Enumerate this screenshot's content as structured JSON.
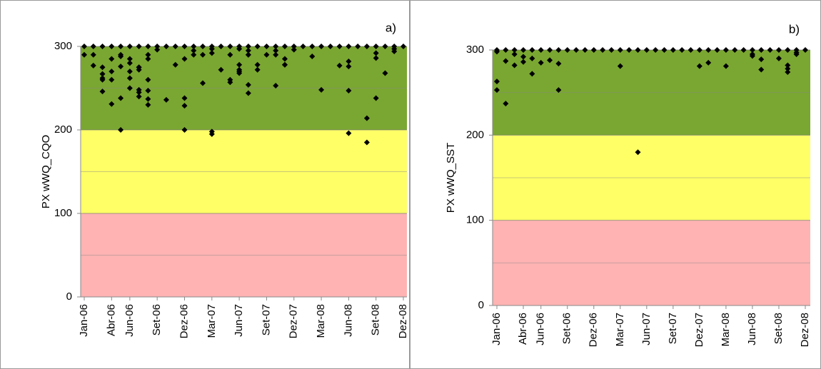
{
  "chart_data": [
    {
      "type": "scatter",
      "panel_label": "a)",
      "y_label": "PX wWQ_CQO",
      "x": [
        "2006-01",
        "2006-01",
        "2006-02",
        "2006-02",
        "2006-02",
        "2006-03",
        "2006-03",
        "2006-03",
        "2006-03",
        "2006-03",
        "2006-03",
        "2006-04",
        "2006-04",
        "2006-04",
        "2006-04",
        "2006-04",
        "2006-05",
        "2006-05",
        "2006-05",
        "2006-05",
        "2006-05",
        "2006-05",
        "2006-06",
        "2006-06",
        "2006-06",
        "2006-06",
        "2006-06",
        "2006-06",
        "2006-07",
        "2006-07",
        "2006-07",
        "2006-07",
        "2006-07",
        "2006-07",
        "2006-07",
        "2006-08",
        "2006-08",
        "2006-08",
        "2006-08",
        "2006-08",
        "2006-08",
        "2006-08",
        "2006-09",
        "2006-09",
        "2006-10",
        "2006-10",
        "2006-11",
        "2006-11",
        "2006-12",
        "2006-12",
        "2006-12",
        "2006-12",
        "2006-12",
        "2007-01",
        "2007-01",
        "2007-01",
        "2007-02",
        "2007-02",
        "2007-02",
        "2007-03",
        "2007-03",
        "2007-03",
        "2007-03",
        "2007-03",
        "2007-04",
        "2007-04",
        "2007-05",
        "2007-05",
        "2007-05",
        "2007-05",
        "2007-06",
        "2007-06",
        "2007-06",
        "2007-06",
        "2007-06",
        "2007-06",
        "2007-07",
        "2007-07",
        "2007-07",
        "2007-07",
        "2007-07",
        "2007-07",
        "2007-08",
        "2007-08",
        "2007-08",
        "2007-09",
        "2007-09",
        "2007-10",
        "2007-10",
        "2007-10",
        "2007-10",
        "2007-11",
        "2007-11",
        "2007-11",
        "2007-11",
        "2007-12",
        "2007-12",
        "2008-01",
        "2008-02",
        "2008-02",
        "2008-03",
        "2008-03",
        "2008-04",
        "2008-05",
        "2008-05",
        "2008-06",
        "2008-06",
        "2008-06",
        "2008-06",
        "2008-06",
        "2008-07",
        "2008-08",
        "2008-08",
        "2008-08",
        "2008-09",
        "2008-09",
        "2008-09",
        "2008-09",
        "2008-10",
        "2008-10",
        "2008-11",
        "2008-11",
        "2008-11",
        "2008-12"
      ],
      "values": [
        300,
        290,
        300,
        290,
        277,
        300,
        267,
        260,
        246,
        275,
        262,
        300,
        231,
        270,
        285,
        260,
        300,
        290,
        288,
        276,
        238,
        200,
        300,
        285,
        280,
        262,
        250,
        270,
        300,
        275,
        272,
        248,
        245,
        240,
        275,
        300,
        237,
        230,
        247,
        260,
        290,
        285,
        300,
        296,
        300,
        236,
        300,
        278,
        300,
        238,
        229,
        200,
        285,
        300,
        290,
        295,
        300,
        256,
        290,
        300,
        195,
        198,
        292,
        297,
        300,
        272,
        300,
        260,
        257,
        290,
        300,
        278,
        270,
        268,
        272,
        297,
        300,
        290,
        254,
        244,
        290,
        295,
        300,
        278,
        272,
        300,
        290,
        300,
        253,
        295,
        290,
        300,
        278,
        285,
        278,
        300,
        296,
        300,
        300,
        288,
        300,
        248,
        300,
        300,
        277,
        300,
        282,
        276,
        247,
        196,
        300,
        300,
        214,
        185,
        300,
        292,
        286,
        238,
        300,
        268,
        300,
        294,
        297,
        300
      ],
      "color": "#000000",
      "xlim": [
        "2006-01",
        "2008-12"
      ],
      "xticks": [
        {
          "value": "2006-01",
          "label": "Jan-06"
        },
        {
          "value": "2006-04",
          "label": "Abr-06"
        },
        {
          "value": "2006-06",
          "label": "Jun-06"
        },
        {
          "value": "2006-09",
          "label": "Set-06"
        },
        {
          "value": "2006-12",
          "label": "Dez-06"
        },
        {
          "value": "2007-03",
          "label": "Mar-07"
        },
        {
          "value": "2007-06",
          "label": "Jun-07"
        },
        {
          "value": "2007-09",
          "label": "Set-07"
        },
        {
          "value": "2007-12",
          "label": "Dez-07"
        },
        {
          "value": "2008-03",
          "label": "Mar-08"
        },
        {
          "value": "2008-06",
          "label": "Jun-08"
        },
        {
          "value": "2008-09",
          "label": "Set-08"
        },
        {
          "value": "2008-12",
          "label": "Dez-08"
        }
      ],
      "ylim": [
        0,
        300
      ],
      "yticks": [
        0,
        100,
        200,
        300
      ],
      "minor_yticks": [
        50,
        150,
        250
      ],
      "bands": [
        {
          "from": 0,
          "to": 100,
          "color": "#ffb3b3"
        },
        {
          "from": 100,
          "to": 200,
          "color": "#ffff66"
        },
        {
          "from": 200,
          "to": 300,
          "color": "#7aa731"
        }
      ]
    },
    {
      "type": "scatter",
      "panel_label": "b)",
      "y_label": "PX  wWQ_SST",
      "x": [
        "2006-01",
        "2006-01",
        "2006-01",
        "2006-01",
        "2006-02",
        "2006-02",
        "2006-02",
        "2006-03",
        "2006-03",
        "2006-03",
        "2006-04",
        "2006-04",
        "2006-04",
        "2006-05",
        "2006-05",
        "2006-05",
        "2006-06",
        "2006-06",
        "2006-07",
        "2006-07",
        "2006-08",
        "2006-08",
        "2006-08",
        "2006-09",
        "2006-10",
        "2006-11",
        "2006-12",
        "2007-01",
        "2007-02",
        "2007-03",
        "2007-03",
        "2007-04",
        "2007-05",
        "2007-05",
        "2007-06",
        "2007-07",
        "2007-08",
        "2007-09",
        "2007-10",
        "2007-11",
        "2007-12",
        "2007-12",
        "2008-01",
        "2008-01",
        "2008-02",
        "2008-03",
        "2008-03",
        "2008-04",
        "2008-05",
        "2008-06",
        "2008-06",
        "2008-06",
        "2008-07",
        "2008-07",
        "2008-07",
        "2008-08",
        "2008-09",
        "2008-09",
        "2008-10",
        "2008-10",
        "2008-10",
        "2008-10",
        "2008-11",
        "2008-11",
        "2008-11",
        "2008-12"
      ],
      "values": [
        300,
        263,
        253,
        298,
        300,
        237,
        287,
        300,
        282,
        295,
        300,
        286,
        292,
        300,
        272,
        290,
        300,
        285,
        300,
        288,
        300,
        284,
        253,
        300,
        300,
        300,
        300,
        300,
        300,
        300,
        281,
        300,
        300,
        180,
        300,
        300,
        300,
        300,
        300,
        300,
        300,
        281,
        300,
        285,
        300,
        300,
        281,
        300,
        300,
        300,
        293,
        295,
        300,
        289,
        277,
        300,
        300,
        290,
        300,
        282,
        278,
        274,
        300,
        297,
        295,
        300
      ],
      "color": "#000000",
      "xlim": [
        "2006-01",
        "2008-12"
      ],
      "xticks": [
        {
          "value": "2006-01",
          "label": "Jan-06"
        },
        {
          "value": "2006-04",
          "label": "Abr-06"
        },
        {
          "value": "2006-06",
          "label": "Jun-06"
        },
        {
          "value": "2006-09",
          "label": "Set-06"
        },
        {
          "value": "2006-12",
          "label": "Dez-06"
        },
        {
          "value": "2007-03",
          "label": "Mar-07"
        },
        {
          "value": "2007-06",
          "label": "Jun-07"
        },
        {
          "value": "2007-09",
          "label": "Set-07"
        },
        {
          "value": "2007-12",
          "label": "Dez-07"
        },
        {
          "value": "2008-03",
          "label": "Mar-08"
        },
        {
          "value": "2008-06",
          "label": "Jun-08"
        },
        {
          "value": "2008-09",
          "label": "Set-08"
        },
        {
          "value": "2008-12",
          "label": "Dez-08"
        }
      ],
      "ylim": [
        0,
        300
      ],
      "yticks": [
        0,
        100,
        200,
        300
      ],
      "minor_yticks": [
        50,
        150,
        250
      ],
      "bands": [
        {
          "from": 0,
          "to": 100,
          "color": "#ffb3b3"
        },
        {
          "from": 100,
          "to": 200,
          "color": "#ffff66"
        },
        {
          "from": 200,
          "to": 300,
          "color": "#7aa731"
        }
      ]
    }
  ]
}
